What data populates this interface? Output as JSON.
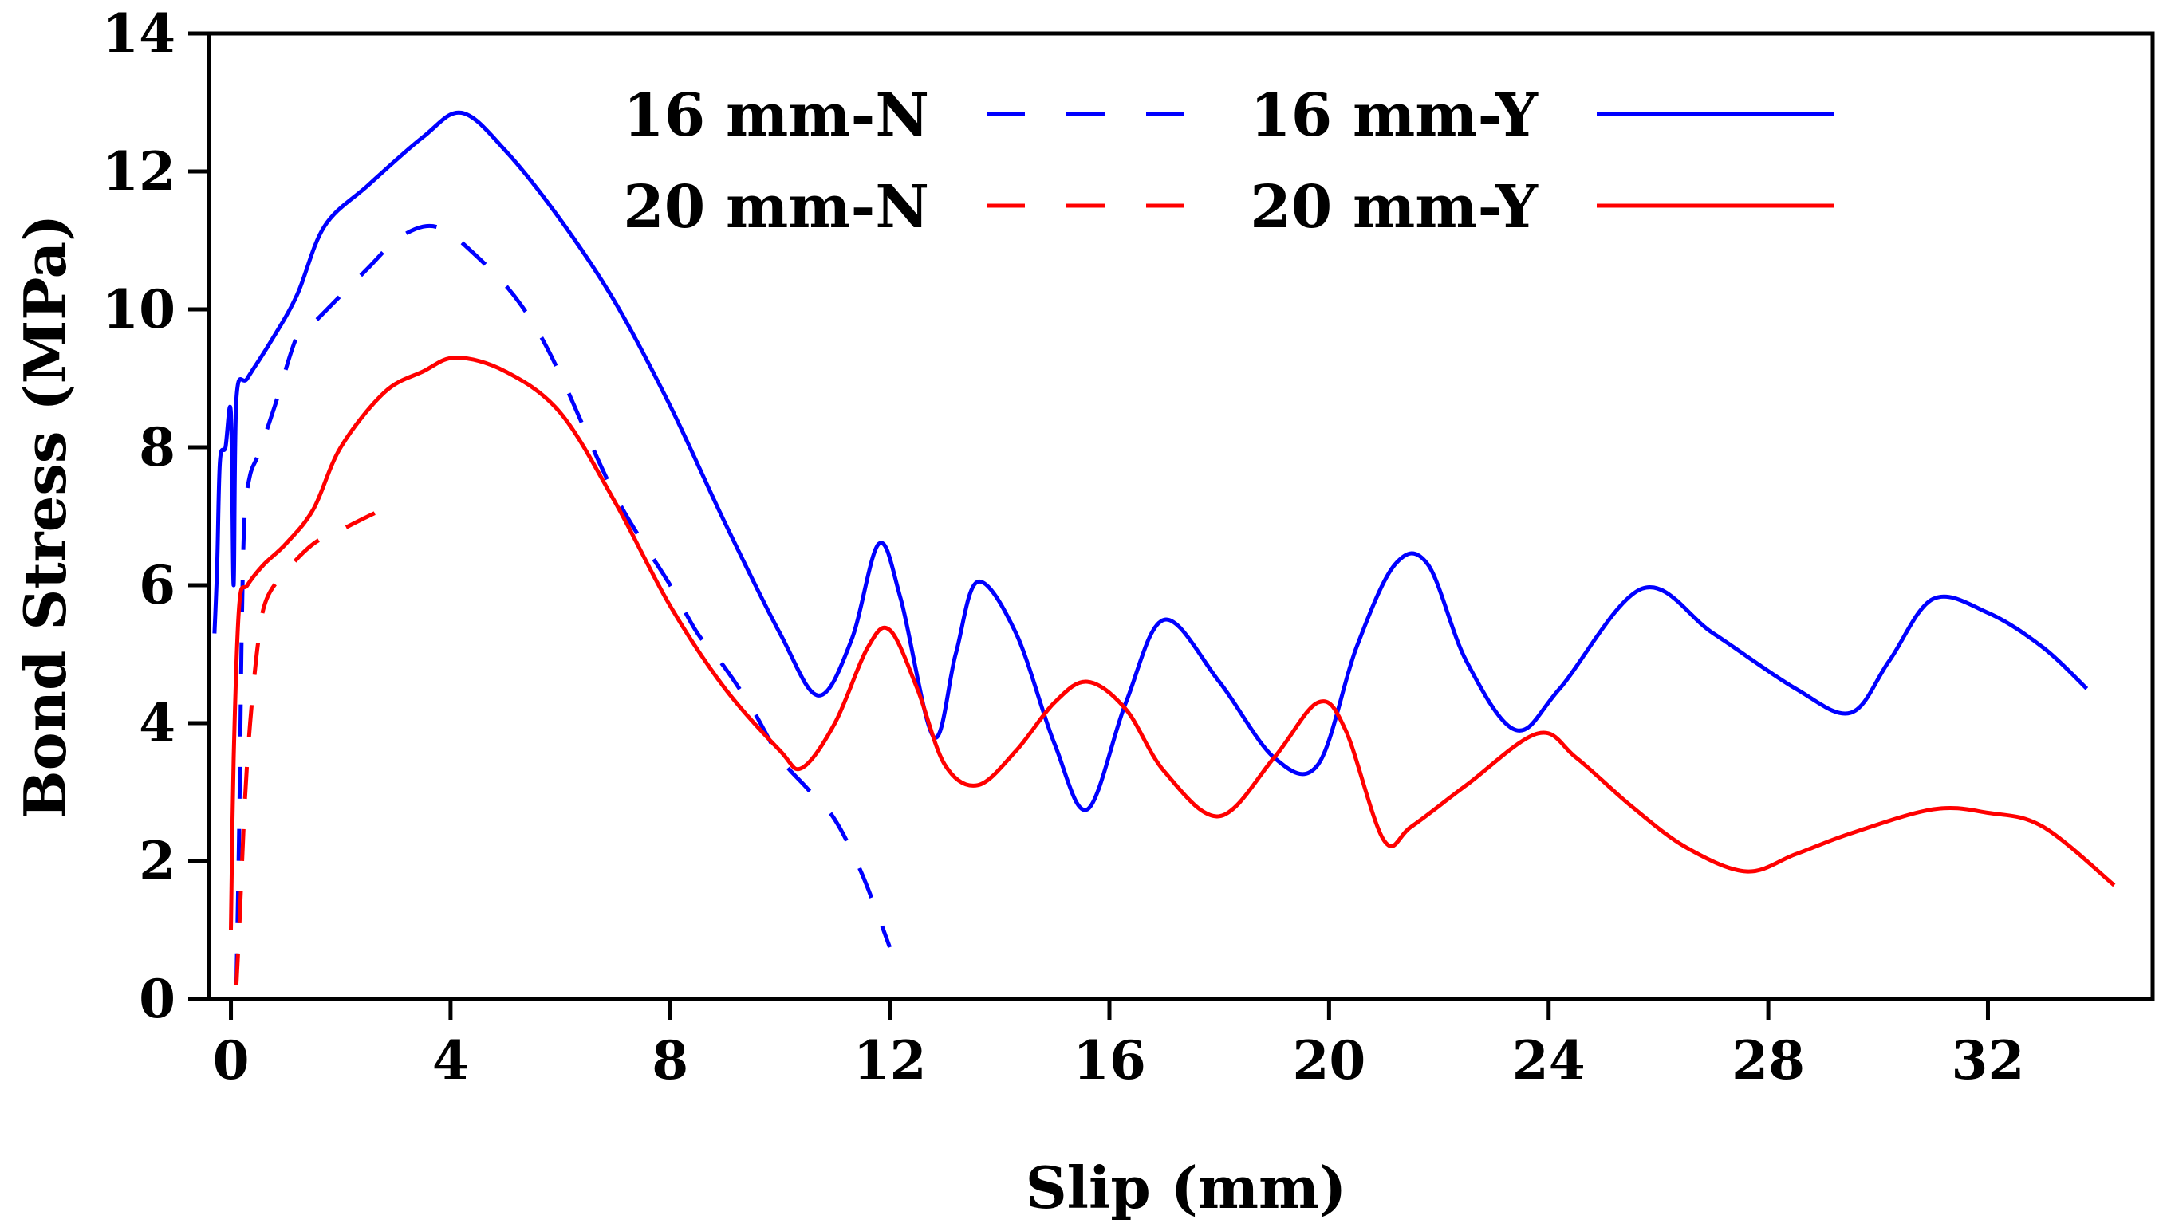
{
  "chart_data": {
    "type": "line",
    "title": "",
    "xlabel": "Slip (mm)",
    "ylabel": "Bond Stress (MPa)",
    "xlim": [
      -0.4,
      35
    ],
    "ylim": [
      0,
      14
    ],
    "xticks": [
      0,
      4,
      8,
      12,
      16,
      20,
      24,
      28,
      32
    ],
    "yticks": [
      0,
      2,
      4,
      6,
      8,
      10,
      12,
      14
    ],
    "grid": false,
    "legend_position": "top-center",
    "series": [
      {
        "name": "16 mm-N",
        "color": "#0000ff",
        "style": "dashed",
        "x": [
          0.1,
          0.15,
          0.2,
          0.25,
          0.35,
          0.5,
          0.8,
          1.2,
          1.5,
          2,
          2.5,
          3,
          3.5,
          3.9,
          4.3,
          5,
          5.5,
          6,
          7,
          8,
          8.5,
          9,
          9.5,
          10,
          10.5,
          11,
          11.5,
          12
        ],
        "y": [
          0.2,
          2.5,
          5.5,
          7.0,
          7.6,
          7.9,
          8.6,
          9.6,
          9.8,
          10.2,
          10.6,
          11.0,
          11.2,
          11.15,
          10.9,
          10.35,
          9.8,
          9.05,
          7.3,
          6.0,
          5.3,
          4.8,
          4.2,
          3.5,
          3.05,
          2.6,
          1.8,
          0.75
        ]
      },
      {
        "name": "16 mm-Y",
        "color": "#0000ff",
        "style": "solid",
        "x": [
          -0.3,
          -0.25,
          -0.2,
          -0.1,
          0,
          0.05,
          0.1,
          0.3,
          0.7,
          1.2,
          1.7,
          2.5,
          3.5,
          4.2,
          5,
          6,
          7,
          8,
          9,
          10,
          10.7,
          11.3,
          11.8,
          12.2,
          12.8,
          13.2,
          13.6,
          14.3,
          15,
          15.6,
          16.3,
          17,
          18,
          19,
          19.8,
          20.5,
          21.2,
          21.8,
          22.5,
          23.4,
          24.2,
          25.7,
          27,
          28.5,
          29.5,
          30.2,
          31,
          32,
          33,
          33.8
        ],
        "y": [
          5.3,
          6.3,
          7.8,
          8.0,
          8.5,
          6.0,
          8.7,
          9.0,
          9.5,
          10.2,
          11.2,
          11.8,
          12.5,
          12.85,
          12.3,
          11.3,
          10.1,
          8.6,
          6.9,
          5.3,
          4.4,
          5.2,
          6.6,
          5.8,
          3.8,
          5.0,
          6.05,
          5.3,
          3.7,
          2.75,
          4.3,
          5.5,
          4.6,
          3.5,
          3.4,
          5.1,
          6.3,
          6.3,
          4.9,
          3.9,
          4.5,
          5.95,
          5.3,
          4.5,
          4.15,
          4.9,
          5.8,
          5.6,
          5.1,
          4.5
        ]
      },
      {
        "name": "20 mm-N",
        "color": "#ff0000",
        "style": "dashed",
        "x": [
          0.1,
          0.15,
          0.25,
          0.35,
          0.5,
          0.65,
          1,
          1.5,
          2,
          2.5,
          2.9
        ],
        "y": [
          0.2,
          1.0,
          2.8,
          4.0,
          5.2,
          5.8,
          6.2,
          6.6,
          6.8,
          7.0,
          7.15
        ]
      },
      {
        "name": "20 mm-Y",
        "color": "#ff0000",
        "style": "solid",
        "x": [
          0,
          0.05,
          0.15,
          0.3,
          0.6,
          1,
          1.5,
          2,
          2.8,
          3.5,
          4.1,
          5,
          6,
          7,
          8,
          9,
          10,
          10.4,
          11,
          11.6,
          12,
          12.5,
          13,
          13.6,
          14.3,
          15,
          15.6,
          16.3,
          17,
          18,
          19,
          19.8,
          20.3,
          21,
          21.5,
          22.5,
          23.8,
          24.5,
          25.5,
          26.5,
          27.6,
          28.5,
          29.5,
          31,
          32,
          33,
          34.3
        ],
        "y": [
          1.0,
          3.5,
          5.7,
          6.0,
          6.3,
          6.6,
          7.1,
          8.0,
          8.8,
          9.1,
          9.3,
          9.1,
          8.5,
          7.2,
          5.7,
          4.5,
          3.6,
          3.35,
          4.0,
          5.1,
          5.35,
          4.5,
          3.4,
          3.1,
          3.6,
          4.3,
          4.6,
          4.2,
          3.3,
          2.65,
          3.5,
          4.3,
          3.9,
          2.3,
          2.5,
          3.1,
          3.85,
          3.5,
          2.8,
          2.2,
          1.85,
          2.1,
          2.4,
          2.75,
          2.7,
          2.5,
          1.65
        ]
      }
    ]
  }
}
